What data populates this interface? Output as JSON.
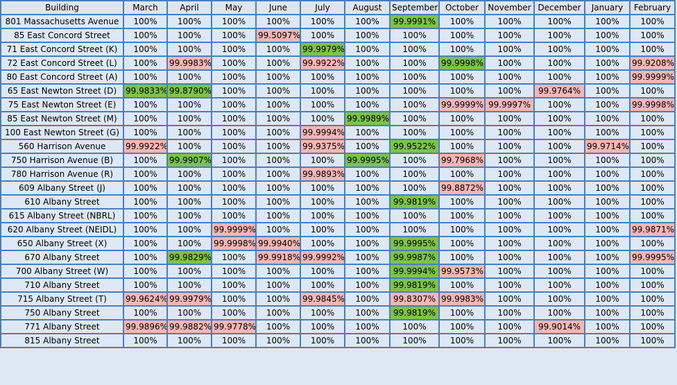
{
  "colors": {
    "red": "#f4b6b6",
    "green": "#7dc24a",
    "cell": "#dde8f4",
    "border": "#4a7ebb"
  },
  "headers": [
    "Building",
    "March",
    "April",
    "May",
    "June",
    "July",
    "August",
    "September",
    "October",
    "November",
    "December",
    "January",
    "February"
  ],
  "rows": [
    {
      "building": "801 Massachusetts Avenue",
      "values": [
        "100%",
        "100%",
        "100%",
        "100%",
        "100%",
        "100%",
        "99.9991%",
        "100%",
        "100%",
        "100%",
        "100%",
        "100%"
      ],
      "hl": [
        "",
        "",
        "",
        "",
        "",
        "",
        "g",
        "",
        "",
        "",
        "",
        ""
      ]
    },
    {
      "building": "85 East Concord Street",
      "values": [
        "100%",
        "100%",
        "100%",
        "99.5097%",
        "100%",
        "100%",
        "100%",
        "100%",
        "100%",
        "100%",
        "100%",
        "100%"
      ],
      "hl": [
        "",
        "",
        "",
        "r",
        "",
        "",
        "",
        "",
        "",
        "",
        "",
        ""
      ]
    },
    {
      "building": "71 East Concord Street (K)",
      "values": [
        "100%",
        "100%",
        "100%",
        "100%",
        "99.9979%",
        "100%",
        "100%",
        "100%",
        "100%",
        "100%",
        "100%",
        "100%"
      ],
      "hl": [
        "",
        "",
        "",
        "",
        "g",
        "",
        "",
        "",
        "",
        "",
        "",
        ""
      ]
    },
    {
      "building": "72 East Concord Street (L)",
      "values": [
        "100%",
        "99.9983%",
        "100%",
        "100%",
        "99.9922%",
        "100%",
        "100%",
        "99.9998%",
        "100%",
        "100%",
        "100%",
        "99.9208%"
      ],
      "hl": [
        "",
        "r",
        "",
        "",
        "r",
        "",
        "",
        "g",
        "",
        "",
        "",
        "r"
      ]
    },
    {
      "building": "80 East Concord Street (A)",
      "values": [
        "100%",
        "100%",
        "100%",
        "100%",
        "100%",
        "100%",
        "100%",
        "100%",
        "100%",
        "100%",
        "100%",
        "99.9999%"
      ],
      "hl": [
        "",
        "",
        "",
        "",
        "",
        "",
        "",
        "",
        "",
        "",
        "",
        "r"
      ]
    },
    {
      "building": "65 East Newton Street (D)",
      "values": [
        "99.9833%",
        "99.8790%",
        "100%",
        "100%",
        "100%",
        "100%",
        "100%",
        "100%",
        "100%",
        "99.9764%",
        "100%",
        "100%"
      ],
      "hl": [
        "g",
        "g",
        "",
        "",
        "",
        "",
        "",
        "",
        "",
        "r",
        "",
        ""
      ]
    },
    {
      "building": "75 East Newton Street (E)",
      "values": [
        "100%",
        "100%",
        "100%",
        "100%",
        "100%",
        "100%",
        "100%",
        "99.9999%",
        "99.9997%",
        "100%",
        "100%",
        "99.9998%"
      ],
      "hl": [
        "",
        "",
        "",
        "",
        "",
        "",
        "",
        "r",
        "r",
        "",
        "",
        "r"
      ]
    },
    {
      "building": "85 East Newton Street (M)",
      "values": [
        "100%",
        "100%",
        "100%",
        "100%",
        "100%",
        "99.9989%",
        "100%",
        "100%",
        "100%",
        "100%",
        "100%",
        "100%"
      ],
      "hl": [
        "",
        "",
        "",
        "",
        "",
        "g",
        "",
        "",
        "",
        "",
        "",
        ""
      ]
    },
    {
      "building": "100 East Newton Street (G)",
      "values": [
        "100%",
        "100%",
        "100%",
        "100%",
        "99.9994%",
        "100%",
        "100%",
        "100%",
        "100%",
        "100%",
        "100%",
        "100%"
      ],
      "hl": [
        "",
        "",
        "",
        "",
        "r",
        "",
        "",
        "",
        "",
        "",
        "",
        ""
      ]
    },
    {
      "building": "560 Harrison Avenue",
      "values": [
        "99.9922%",
        "100%",
        "100%",
        "100%",
        "99.9375%",
        "100%",
        "99.9522%",
        "100%",
        "100%",
        "100%",
        "99.9714%",
        "100%"
      ],
      "hl": [
        "r",
        "",
        "",
        "",
        "r",
        "",
        "g",
        "",
        "",
        "",
        "r",
        ""
      ]
    },
    {
      "building": "750 Harrison Avenue (B)",
      "values": [
        "100%",
        "99.9907%",
        "100%",
        "100%",
        "100%",
        "99.9995%",
        "100%",
        "99.7968%",
        "100%",
        "100%",
        "100%",
        "100%"
      ],
      "hl": [
        "",
        "g",
        "",
        "",
        "",
        "g",
        "",
        "r",
        "",
        "",
        "",
        ""
      ]
    },
    {
      "building": "780 Harrison Avenue (R)",
      "values": [
        "100%",
        "100%",
        "100%",
        "100%",
        "99.9893%",
        "100%",
        "100%",
        "100%",
        "100%",
        "100%",
        "100%",
        "100%"
      ],
      "hl": [
        "",
        "",
        "",
        "",
        "r",
        "",
        "",
        "",
        "",
        "",
        "",
        ""
      ]
    },
    {
      "building": "609 Albany Street (J)",
      "values": [
        "100%",
        "100%",
        "100%",
        "100%",
        "100%",
        "100%",
        "100%",
        "99.8872%",
        "100%",
        "100%",
        "100%",
        "100%"
      ],
      "hl": [
        "",
        "",
        "",
        "",
        "",
        "",
        "",
        "r",
        "",
        "",
        "",
        ""
      ]
    },
    {
      "building": "610 Albany Street",
      "values": [
        "100%",
        "100%",
        "100%",
        "100%",
        "100%",
        "100%",
        "99.9819%",
        "100%",
        "100%",
        "100%",
        "100%",
        "100%"
      ],
      "hl": [
        "",
        "",
        "",
        "",
        "",
        "",
        "g",
        "",
        "",
        "",
        "",
        ""
      ]
    },
    {
      "building": "615 Albany Street (NBRL)",
      "values": [
        "100%",
        "100%",
        "100%",
        "100%",
        "100%",
        "100%",
        "100%",
        "100%",
        "100%",
        "100%",
        "100%",
        "100%"
      ],
      "hl": [
        "",
        "",
        "",
        "",
        "",
        "",
        "",
        "",
        "",
        "",
        "",
        ""
      ]
    },
    {
      "building": "620 Albany Street (NEIDL)",
      "values": [
        "100%",
        "100%",
        "99.9999%",
        "100%",
        "100%",
        "100%",
        "100%",
        "100%",
        "100%",
        "100%",
        "100%",
        "99.9871%"
      ],
      "hl": [
        "",
        "",
        "r",
        "",
        "",
        "",
        "",
        "",
        "",
        "",
        "",
        "r"
      ]
    },
    {
      "building": "650 Albany Street (X)",
      "values": [
        "100%",
        "100%",
        "99.9998%",
        "99.9940%",
        "100%",
        "100%",
        "99.9995%",
        "100%",
        "100%",
        "100%",
        "100%",
        "100%"
      ],
      "hl": [
        "",
        "",
        "r",
        "r",
        "",
        "",
        "g",
        "",
        "",
        "",
        "",
        ""
      ]
    },
    {
      "building": "670 Albany Street",
      "values": [
        "100%",
        "99.9829%",
        "100%",
        "99.9918%",
        "99.9992%",
        "100%",
        "99.9987%",
        "100%",
        "100%",
        "100%",
        "100%",
        "99.9995%"
      ],
      "hl": [
        "",
        "g",
        "",
        "r",
        "r",
        "",
        "g",
        "",
        "",
        "",
        "",
        "r"
      ]
    },
    {
      "building": "700 Albany Street (W)",
      "values": [
        "100%",
        "100%",
        "100%",
        "100%",
        "100%",
        "100%",
        "99.9994%",
        "99.9573%",
        "100%",
        "100%",
        "100%",
        "100%"
      ],
      "hl": [
        "",
        "",
        "",
        "",
        "",
        "",
        "g",
        "r",
        "",
        "",
        "",
        ""
      ]
    },
    {
      "building": "710 Albany Street",
      "values": [
        "100%",
        "100%",
        "100%",
        "100%",
        "100%",
        "100%",
        "99.9819%",
        "100%",
        "100%",
        "100%",
        "100%",
        "100%"
      ],
      "hl": [
        "",
        "",
        "",
        "",
        "",
        "",
        "g",
        "",
        "",
        "",
        "",
        ""
      ]
    },
    {
      "building": "715 Albany Street (T)",
      "values": [
        "99.9624%",
        "99.9979%",
        "100%",
        "100%",
        "99.9845%",
        "100%",
        "99.8307%",
        "99.9983%",
        "100%",
        "100%",
        "100%",
        "100%"
      ],
      "hl": [
        "r",
        "r",
        "",
        "",
        "r",
        "",
        "r",
        "r",
        "",
        "",
        "",
        ""
      ]
    },
    {
      "building": "750 Albany Street",
      "values": [
        "100%",
        "100%",
        "100%",
        "100%",
        "100%",
        "100%",
        "99.9819%",
        "100%",
        "100%",
        "100%",
        "100%",
        "100%"
      ],
      "hl": [
        "",
        "",
        "",
        "",
        "",
        "",
        "g",
        "",
        "",
        "",
        "",
        ""
      ]
    },
    {
      "building": "771 Albany Street",
      "values": [
        "99.9896%",
        "99.9882%",
        "99.9778%",
        "100%",
        "100%",
        "100%",
        "100%",
        "100%",
        "100%",
        "99.9014%",
        "100%",
        "100%"
      ],
      "hl": [
        "r",
        "r",
        "r",
        "",
        "",
        "",
        "",
        "",
        "",
        "r",
        "",
        ""
      ]
    },
    {
      "building": "815 Albany Street",
      "values": [
        "100%",
        "100%",
        "100%",
        "100%",
        "100%",
        "100%",
        "100%",
        "100%",
        "100%",
        "100%",
        "100%",
        "100%"
      ],
      "hl": [
        "",
        "",
        "",
        "",
        "",
        "",
        "",
        "",
        "",
        "",
        "",
        ""
      ]
    }
  ]
}
